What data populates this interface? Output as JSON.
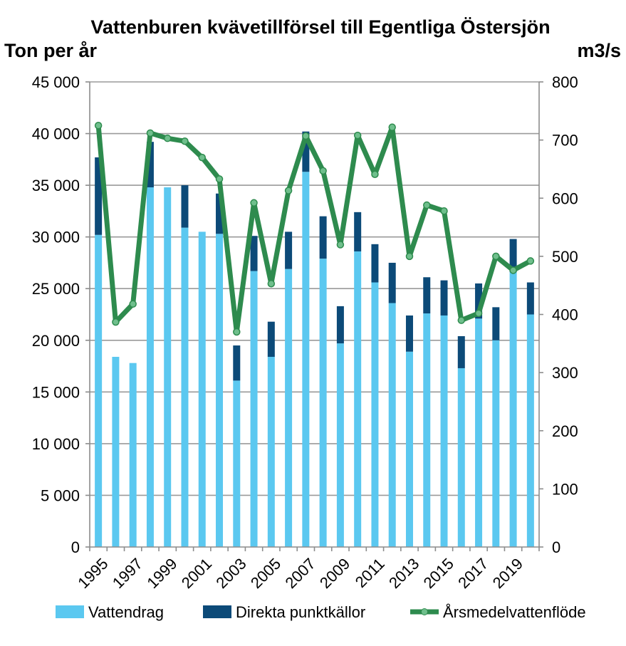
{
  "chart_data": {
    "type": "bar+line",
    "title": "Vattenburen kvävetillförsel till Egentliga Östersjön",
    "ylabel_left": "Ton per år",
    "ylabel_right": "m3/s",
    "ylim_left": [
      0,
      45000
    ],
    "ylim_right": [
      0,
      800
    ],
    "left_ticks": [
      "0",
      "5 000",
      "10 000",
      "15 000",
      "20 000",
      "25 000",
      "30 000",
      "35 000",
      "40 000",
      "45 000"
    ],
    "right_ticks": [
      "0",
      "100",
      "200",
      "300",
      "400",
      "500",
      "600",
      "700",
      "800"
    ],
    "years": [
      1995,
      1996,
      1997,
      1998,
      1999,
      2000,
      2001,
      2002,
      2003,
      2004,
      2005,
      2006,
      2007,
      2008,
      2009,
      2010,
      2011,
      2012,
      2013,
      2014,
      2015,
      2016,
      2017,
      2018,
      2019,
      2020
    ],
    "x_tick_labels": [
      "1995",
      "1997",
      "1999",
      "2001",
      "2003",
      "2005",
      "2007",
      "2009",
      "2011",
      "2013",
      "2015",
      "2017",
      "2019"
    ],
    "series": [
      {
        "name": "Vattendrag",
        "type": "bar",
        "color": "#5BC8F0",
        "values": [
          30200,
          18400,
          17800,
          34800,
          34800,
          30900,
          30500,
          30300,
          16100,
          26700,
          18400,
          26900,
          36300,
          27900,
          19700,
          28600,
          25600,
          23600,
          18900,
          22600,
          22400,
          17300,
          22100,
          20000,
          26600,
          22500
        ]
      },
      {
        "name": "Direkta punktkällor",
        "type": "bar",
        "color": "#0C4A78",
        "values": [
          7500,
          0,
          0,
          4400,
          0,
          4100,
          0,
          3900,
          3400,
          3400,
          3400,
          3600,
          3900,
          4100,
          3600,
          3800,
          3700,
          3900,
          3500,
          3500,
          3400,
          3100,
          3400,
          3200,
          3200,
          3100
        ]
      },
      {
        "name": "Årsmedelvattenflöde",
        "type": "line",
        "color": "#2E8B4E",
        "values": [
          725,
          387,
          418,
          712,
          703,
          698,
          670,
          633,
          370,
          592,
          453,
          613,
          707,
          647,
          520,
          708,
          641,
          722,
          500,
          588,
          578,
          390,
          402,
          500,
          476,
          492
        ]
      }
    ]
  }
}
